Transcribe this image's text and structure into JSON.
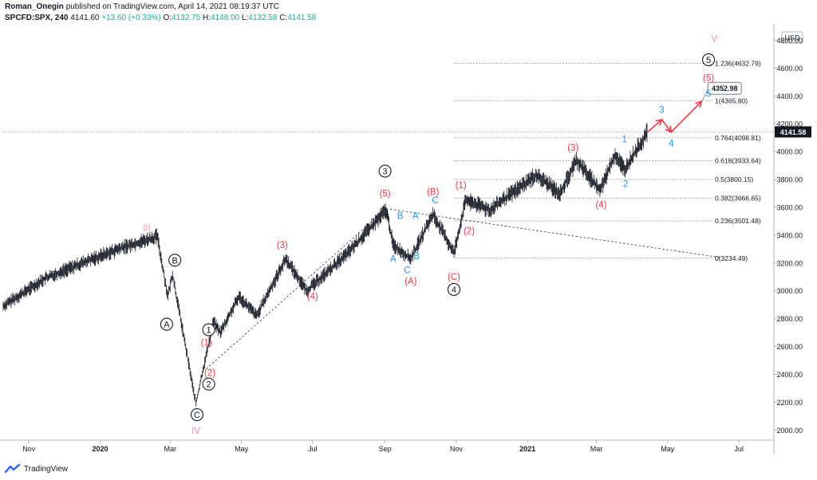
{
  "header": {
    "author": "Roman_Onegin",
    "published": "published on TradingView.com, April 14, 2021 08:19:37 UTC",
    "symbol": "SPCFD:SPX, 240",
    "last": "4141.60",
    "change": "+13.60 (+0.33%)",
    "open_label": "O:",
    "open": "4132.75",
    "high_label": "H:",
    "high": "4148.00",
    "low_label": "L:",
    "low": "4132.58",
    "close_label": "C:",
    "close": "4141.58"
  },
  "footer": {
    "brand": "TradingView",
    "logo_icon": "tradingview-logo-icon"
  },
  "colors": {
    "red": "#f23645",
    "blue": "#2196f3",
    "pink": "#f48fb1",
    "black": "#131722",
    "price_tag": "#131722"
  },
  "chart_data": {
    "type": "line",
    "currency": "USD",
    "y_range": [
      1950,
      4900
    ],
    "y_ticks": [
      2000,
      2200,
      2400,
      2600,
      2800,
      3000,
      3200,
      3400,
      3600,
      3800,
      4000,
      4200,
      4400,
      4600,
      4800
    ],
    "x_range": [
      "2019-10-10",
      "2021-07-31"
    ],
    "x_ticks": [
      {
        "date": "2019-11-01",
        "label": "Nov"
      },
      {
        "date": "2020-01-01",
        "label": "2020"
      },
      {
        "date": "2020-03-01",
        "label": "Mar"
      },
      {
        "date": "2020-05-01",
        "label": "May"
      },
      {
        "date": "2020-07-01",
        "label": "Jul"
      },
      {
        "date": "2020-09-01",
        "label": "Sep"
      },
      {
        "date": "2020-11-01",
        "label": "Nov"
      },
      {
        "date": "2021-01-01",
        "label": "2021"
      },
      {
        "date": "2021-03-01",
        "label": "Mar"
      },
      {
        "date": "2021-05-01",
        "label": "May"
      },
      {
        "date": "2021-07-01",
        "label": "Jul"
      }
    ],
    "last_price": "4141.58",
    "projection_price": "4352.98",
    "price_path": [
      {
        "date": "2019-10-10",
        "price": 2890
      },
      {
        "date": "2019-11-15",
        "price": 3090
      },
      {
        "date": "2019-12-20",
        "price": 3210
      },
      {
        "date": "2020-01-20",
        "price": 3310
      },
      {
        "date": "2020-02-19",
        "price": 3390
      },
      {
        "date": "2020-02-28",
        "price": 2960
      },
      {
        "date": "2020-03-03",
        "price": 3120
      },
      {
        "date": "2020-03-23",
        "price": 2190
      },
      {
        "date": "2020-04-07",
        "price": 2780
      },
      {
        "date": "2020-04-13",
        "price": 2700
      },
      {
        "date": "2020-04-29",
        "price": 2960
      },
      {
        "date": "2020-05-14",
        "price": 2820
      },
      {
        "date": "2020-06-08",
        "price": 3230
      },
      {
        "date": "2020-06-26",
        "price": 3000
      },
      {
        "date": "2020-07-31",
        "price": 3270
      },
      {
        "date": "2020-09-02",
        "price": 3580
      },
      {
        "date": "2020-09-08",
        "price": 3330
      },
      {
        "date": "2020-09-23",
        "price": 3230
      },
      {
        "date": "2020-10-12",
        "price": 3550
      },
      {
        "date": "2020-10-30",
        "price": 3270
      },
      {
        "date": "2020-11-09",
        "price": 3650
      },
      {
        "date": "2020-11-30",
        "price": 3580
      },
      {
        "date": "2021-01-08",
        "price": 3830
      },
      {
        "date": "2021-01-29",
        "price": 3700
      },
      {
        "date": "2021-02-12",
        "price": 3940
      },
      {
        "date": "2021-03-04",
        "price": 3720
      },
      {
        "date": "2021-03-17",
        "price": 3980
      },
      {
        "date": "2021-03-25",
        "price": 3870
      },
      {
        "date": "2021-04-14",
        "price": 4141.58
      }
    ],
    "fib_levels": [
      {
        "label": "1.236(4632.79)",
        "value": 4632.79
      },
      {
        "label": "1(4365.80)",
        "value": 4365.8
      },
      {
        "label": "0.764(4098.81)",
        "value": 4098.81
      },
      {
        "label": "0.618(3933.64)",
        "value": 3933.64
      },
      {
        "label": "0.5(3800.15)",
        "value": 3800.15
      },
      {
        "label": "0.382(3666.65)",
        "value": 3666.65
      },
      {
        "label": "0.236(3501.48)",
        "value": 3501.48
      },
      {
        "label": "0(3234.49)",
        "value": 3234.49
      }
    ],
    "trendlines": [
      {
        "from": {
          "date": "2020-04-01",
          "price": 2440
        },
        "to": {
          "date": "2020-09-02",
          "price": 3590
        }
      },
      {
        "from": {
          "date": "2020-09-02",
          "price": 3590
        },
        "to": {
          "date": "2021-06-15",
          "price": 3240
        }
      }
    ],
    "projection_path": [
      {
        "date": "2021-04-14",
        "price": 4141.58
      },
      {
        "date": "2021-04-26",
        "price": 4230
      },
      {
        "date": "2021-05-04",
        "price": 4140
      },
      {
        "date": "2021-05-30",
        "price": 4360
      }
    ],
    "wave_labels": [
      {
        "text": "III",
        "date": "2020-02-10",
        "price": 3450,
        "color": "pink",
        "style": "plain"
      },
      {
        "text": "IV",
        "date": "2020-03-23",
        "price": 1995,
        "color": "pink",
        "style": "plain"
      },
      {
        "text": "V",
        "date": "2021-06-10",
        "price": 4810,
        "color": "pink",
        "style": "plain"
      },
      {
        "text": "B",
        "date": "2020-03-05",
        "price": 3220,
        "color": "black",
        "style": "circle"
      },
      {
        "text": "A",
        "date": "2020-02-27",
        "price": 2760,
        "color": "black",
        "style": "circle"
      },
      {
        "text": "C",
        "date": "2020-03-24",
        "price": 2110,
        "color": "black",
        "style": "circle"
      },
      {
        "text": "1",
        "date": "2020-04-03",
        "price": 2720,
        "color": "black",
        "style": "circle"
      },
      {
        "text": "2",
        "date": "2020-04-03",
        "price": 2330,
        "color": "black",
        "style": "circle"
      },
      {
        "text": "3",
        "date": "2020-09-01",
        "price": 3860,
        "color": "black",
        "style": "circle"
      },
      {
        "text": "4",
        "date": "2020-10-30",
        "price": 3010,
        "color": "black",
        "style": "circle"
      },
      {
        "text": "5",
        "date": "2021-06-05",
        "price": 4660,
        "color": "black",
        "style": "circle"
      },
      {
        "text": "(1)",
        "date": "2020-04-01",
        "price": 2630,
        "color": "red",
        "style": "plain"
      },
      {
        "text": "(2)",
        "date": "2020-04-04",
        "price": 2410,
        "color": "red",
        "style": "plain"
      },
      {
        "text": "(3)",
        "date": "2020-06-05",
        "price": 3330,
        "color": "red",
        "style": "plain"
      },
      {
        "text": "(4)",
        "date": "2020-07-01",
        "price": 2960,
        "color": "red",
        "style": "plain"
      },
      {
        "text": "(5)",
        "date": "2020-09-01",
        "price": 3700,
        "color": "red",
        "style": "plain"
      },
      {
        "text": "(A)",
        "date": "2020-09-23",
        "price": 3070,
        "color": "red",
        "style": "plain"
      },
      {
        "text": "(B)",
        "date": "2020-10-12",
        "price": 3710,
        "color": "red",
        "style": "plain"
      },
      {
        "text": "(C)",
        "date": "2020-10-30",
        "price": 3100,
        "color": "red",
        "style": "plain"
      },
      {
        "text": "(1)",
        "date": "2020-11-05",
        "price": 3760,
        "color": "red",
        "style": "plain"
      },
      {
        "text": "(2)",
        "date": "2020-11-12",
        "price": 3430,
        "color": "red",
        "style": "plain"
      },
      {
        "text": "(3)",
        "date": "2021-02-09",
        "price": 4030,
        "color": "red",
        "style": "plain"
      },
      {
        "text": "(4)",
        "date": "2021-03-05",
        "price": 3620,
        "color": "red",
        "style": "plain"
      },
      {
        "text": "(5)",
        "date": "2021-06-05",
        "price": 4530,
        "color": "red",
        "style": "plain"
      },
      {
        "text": "A",
        "date": "2020-09-08",
        "price": 3230,
        "color": "blue",
        "style": "plain"
      },
      {
        "text": "B",
        "date": "2020-09-14",
        "price": 3540,
        "color": "blue",
        "style": "plain"
      },
      {
        "text": "A",
        "date": "2020-09-27",
        "price": 3540,
        "color": "blue",
        "style": "plain"
      },
      {
        "text": "B",
        "date": "2020-09-28",
        "price": 3250,
        "color": "blue",
        "style": "plain"
      },
      {
        "text": "C",
        "date": "2020-09-20",
        "price": 3150,
        "color": "blue",
        "style": "plain"
      },
      {
        "text": "C",
        "date": "2020-10-14",
        "price": 3650,
        "color": "blue",
        "style": "plain"
      },
      {
        "text": "1",
        "date": "2021-03-25",
        "price": 4090,
        "color": "blue",
        "style": "plain"
      },
      {
        "text": "2",
        "date": "2021-03-26",
        "price": 3770,
        "color": "blue",
        "style": "plain"
      },
      {
        "text": "3",
        "date": "2021-04-26",
        "price": 4300,
        "color": "blue",
        "style": "plain"
      },
      {
        "text": "4",
        "date": "2021-05-04",
        "price": 4060,
        "color": "blue",
        "style": "plain"
      },
      {
        "text": "5",
        "date": "2021-06-05",
        "price": 4420,
        "color": "blue",
        "style": "plain"
      }
    ]
  }
}
